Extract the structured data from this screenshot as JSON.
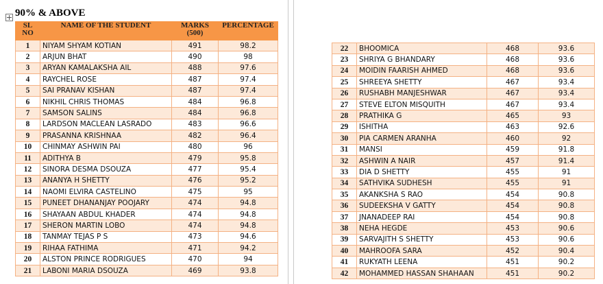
{
  "heading": "90% & ABOVE",
  "tables": [
    {
      "header": [
        "SL NO",
        "NAME OF THE STUDENT",
        "MARKS (500)",
        "PERCENTAGE"
      ],
      "rows": [
        [
          1,
          "NIYAM SHYAM KOTIAN",
          491,
          98.2
        ],
        [
          2,
          "ARJUN BHAT",
          490,
          98
        ],
        [
          3,
          "ARYAN KAMALAKSHA AIL",
          488,
          97.6
        ],
        [
          4,
          "RAYCHEL ROSE",
          487,
          97.4
        ],
        [
          5,
          "SAI PRANAV KISHAN",
          487,
          97.4
        ],
        [
          6,
          "NIKHIL CHRIS THOMAS",
          484,
          96.8
        ],
        [
          7,
          "SAMSON SALINS",
          484,
          96.8
        ],
        [
          8,
          "LARDSON MACLEAN LASRADO",
          483,
          96.6
        ],
        [
          9,
          "PRASANNA KRISHNAA",
          482,
          96.4
        ],
        [
          10,
          "CHINMAY ASHWIN PAI",
          480,
          96
        ],
        [
          11,
          "ADITHYA B",
          479,
          95.8
        ],
        [
          12,
          "SINORA DESMA DSOUZA",
          477,
          95.4
        ],
        [
          13,
          "ANANYA H SHETTY",
          476,
          95.2
        ],
        [
          14,
          "NAOMI ELVIRA CASTELINO",
          475,
          95
        ],
        [
          15,
          "PUNEET DHANANJAY POOJARY",
          474,
          94.8
        ],
        [
          16,
          "SHAYAAN ABDUL KHADER",
          474,
          94.8
        ],
        [
          17,
          "SHERON MARTIN LOBO",
          474,
          94.8
        ],
        [
          18,
          "TANMAY TEJAS P S",
          473,
          94.6
        ],
        [
          19,
          "RIHAA FATHIMA",
          471,
          94.2
        ],
        [
          20,
          "ALSTON PRINCE RODRIGUES",
          470,
          94
        ],
        [
          21,
          "LABONI MARIA DSOUZA",
          469,
          93.8
        ]
      ]
    },
    {
      "rows": [
        [
          22,
          "BHOOMICA",
          468,
          93.6
        ],
        [
          23,
          "SHRIYA G BHANDARY",
          468,
          93.6
        ],
        [
          24,
          "MOIDIN FAARISH AHMED",
          468,
          93.6
        ],
        [
          25,
          "SHREEYA SHETTY",
          467,
          93.4
        ],
        [
          26,
          "RUSHABH MANJESHWAR",
          467,
          93.4
        ],
        [
          27,
          "STEVE ELTON MISQUITH",
          467,
          93.4
        ],
        [
          28,
          "PRATHIKA G",
          465,
          93
        ],
        [
          29,
          "ISHITHA",
          463,
          92.6
        ],
        [
          30,
          "PIA CARMEN ARANHA",
          460,
          92
        ],
        [
          31,
          "MANSI",
          459,
          91.8
        ],
        [
          32,
          "ASHWIN A NAIR",
          457,
          91.4
        ],
        [
          33,
          "DIA D SHETTY",
          455,
          91
        ],
        [
          34,
          "SATHVIKA SUDHESH",
          455,
          91
        ],
        [
          35,
          "AKANKSHA S RAO",
          454,
          90.8
        ],
        [
          36,
          "SUDEEKSHA V GATTY",
          454,
          90.8
        ],
        [
          37,
          "JNANADEEP RAI",
          454,
          90.8
        ],
        [
          38,
          "NEHA HEGDE",
          453,
          90.6
        ],
        [
          39,
          "SARVAJITH S SHETTY",
          453,
          90.6
        ],
        [
          40,
          "MAHROOFA SARA",
          452,
          90.4
        ],
        [
          41,
          "RUKYATH LEENA",
          451,
          90.2
        ],
        [
          42,
          "MOHAMMED HASSAN SHAHAAN",
          451,
          90.2
        ]
      ]
    }
  ]
}
